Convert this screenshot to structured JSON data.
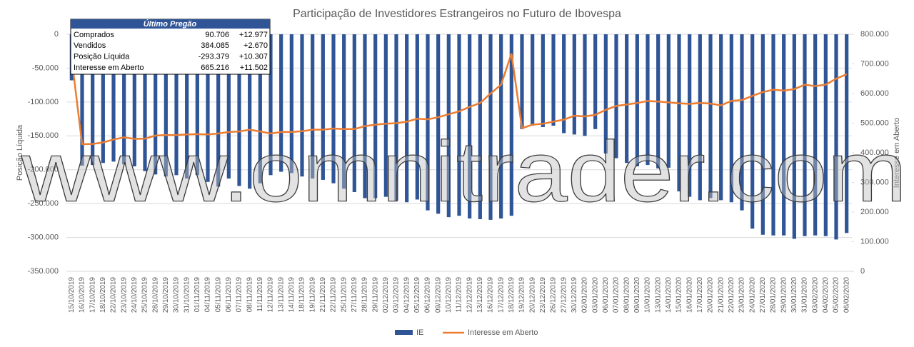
{
  "chart_data": {
    "type": "bar_line",
    "title": "Participação de Investidores Estrangeiros no Futuro de Ibovespa",
    "ylabel": "Posição Líquida",
    "y2label": "Interesse em Aberto",
    "watermark": "www.omnitrader.com",
    "categories": [
      "15/10/2019",
      "16/10/2019",
      "17/10/2019",
      "18/10/2019",
      "22/10/2019",
      "23/10/2019",
      "24/10/2019",
      "25/10/2019",
      "28/10/2019",
      "29/10/2019",
      "30/10/2019",
      "31/10/2019",
      "01/11/2019",
      "04/11/2019",
      "05/11/2019",
      "06/11/2019",
      "07/11/2019",
      "08/11/2019",
      "11/11/2019",
      "12/11/2019",
      "13/11/2019",
      "14/11/2019",
      "18/11/2019",
      "19/11/2019",
      "21/11/2019",
      "22/11/2019",
      "25/11/2019",
      "27/11/2019",
      "28/11/2019",
      "29/11/2019",
      "02/12/2019",
      "03/12/2019",
      "04/12/2019",
      "05/12/2019",
      "06/12/2019",
      "09/12/2019",
      "10/12/2019",
      "11/12/2019",
      "12/12/2019",
      "13/12/2019",
      "16/12/2019",
      "17/12/2019",
      "18/12/2019",
      "19/12/2019",
      "20/12/2019",
      "23/12/2019",
      "26/12/2019",
      "27/12/2019",
      "30/12/2019",
      "02/01/2020",
      "03/01/2020",
      "06/01/2020",
      "07/01/2020",
      "08/01/2020",
      "09/01/2020",
      "10/01/2020",
      "13/01/2020",
      "14/01/2020",
      "15/01/2020",
      "16/01/2020",
      "17/01/2020",
      "20/01/2020",
      "21/01/2020",
      "22/01/2020",
      "23/01/2020",
      "24/01/2020",
      "27/01/2020",
      "28/01/2020",
      "29/01/2020",
      "30/01/2020",
      "31/01/2020",
      "03/02/2020",
      "04/02/2020",
      "05/02/2020",
      "06/02/2020"
    ],
    "series": [
      {
        "name": "IE",
        "color": "#2f5597",
        "values": [
          -68000,
          -194000,
          -193000,
          -190000,
          -188000,
          -192000,
          -195000,
          -202000,
          -207000,
          -210000,
          -208000,
          -213000,
          -208000,
          -218000,
          -225000,
          -213000,
          -224000,
          -228000,
          -220000,
          -208000,
          -203000,
          -205000,
          -210000,
          -213000,
          -215000,
          -220000,
          -228000,
          -233000,
          -242000,
          -242000,
          -240000,
          -246000,
          -248000,
          -244000,
          -260000,
          -265000,
          -270000,
          -268000,
          -272000,
          -273000,
          -274000,
          -272000,
          -268000,
          -140000,
          -135000,
          -137000,
          -135000,
          -146000,
          -148000,
          -150000,
          -140000,
          -176000,
          -183000,
          -190000,
          -195000,
          -193000,
          -198000,
          -197000,
          -232000,
          -240000,
          -245000,
          -242000,
          -245000,
          -248000,
          -260000,
          -287000,
          -296000,
          -297000,
          -297000,
          -302000,
          -298000,
          -297000,
          -298000,
          -303000,
          -293379
        ]
      },
      {
        "name": "Interesse em Aberto",
        "color": "#ed7d31",
        "axis": "y2",
        "values": [
          720000,
          429000,
          430000,
          435000,
          445000,
          452000,
          447000,
          448000,
          458000,
          460000,
          460000,
          462000,
          463000,
          462000,
          465000,
          470000,
          472000,
          478000,
          472000,
          465000,
          470000,
          470000,
          473000,
          478000,
          478000,
          482000,
          480000,
          480000,
          490000,
          495000,
          498000,
          500000,
          505000,
          515000,
          513000,
          520000,
          530000,
          540000,
          555000,
          568000,
          600000,
          630000,
          735000,
          483000,
          495000,
          498000,
          505000,
          512000,
          525000,
          523000,
          528000,
          545000,
          558000,
          563000,
          568000,
          575000,
          573000,
          570000,
          567000,
          565000,
          568000,
          566000,
          560000,
          575000,
          578000,
          592000,
          605000,
          613000,
          610000,
          615000,
          630000,
          625000,
          630000,
          650000,
          665216
        ]
      }
    ],
    "ylim": [
      -350000,
      0
    ],
    "yticks": [
      {
        "value": 0,
        "label": "0"
      },
      {
        "value": -50000,
        "label": "-50.000"
      },
      {
        "value": -100000,
        "label": "-100.000"
      },
      {
        "value": -150000,
        "label": "-150.000"
      },
      {
        "value": -200000,
        "label": "-200.000"
      },
      {
        "value": -250000,
        "label": "-250.000"
      },
      {
        "value": -300000,
        "label": "-300.000"
      },
      {
        "value": -350000,
        "label": "-350.000"
      }
    ],
    "y2lim": [
      0,
      800000
    ],
    "y2ticks": [
      0,
      {
        "value": 100000,
        "label": "100.000"
      },
      {
        "value": 200000,
        "label": "200.000"
      },
      {
        "value": 300000,
        "label": "300.000"
      },
      {
        "value": 400000,
        "label": "400.000"
      },
      {
        "value": 500000,
        "label": "500.000"
      },
      {
        "value": 600000,
        "label": "600.000"
      },
      {
        "value": 700000,
        "label": "700.000"
      },
      {
        "value": 800000,
        "label": "800.000"
      }
    ],
    "grid": true,
    "legend": "bottom"
  },
  "table": {
    "header": "Último Pregão",
    "rows": [
      [
        "Comprados",
        "90.706",
        "+12.977"
      ],
      [
        "Vendidos",
        "384.085",
        "+2.670"
      ],
      [
        "Posição Líquida",
        "-293.379",
        "+10.307"
      ],
      [
        "Interesse em Aberto",
        "665.216",
        "+11.502"
      ]
    ]
  }
}
